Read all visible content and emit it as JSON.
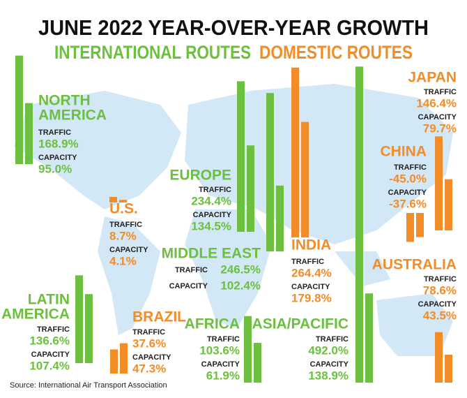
{
  "chart_data": {
    "type": "bar",
    "title": "JUNE 2022 YEAR-OVER-YEAR GROWTH",
    "series": [
      {
        "name": "INTERNATIONAL ROUTES",
        "color": "#6cbf3f"
      },
      {
        "name": "DOMESTIC ROUTES",
        "color": "#f28c28"
      }
    ],
    "metrics": [
      "TRAFFIC",
      "CAPACITY"
    ],
    "regions": [
      {
        "name": [
          "NORTH",
          "AMERICA"
        ],
        "series": 0,
        "values": [
          168.9,
          95.0
        ],
        "value_labels": [
          "168.9%",
          "95.0%"
        ]
      },
      {
        "name": [
          "U.S."
        ],
        "series": 1,
        "values": [
          8.7,
          4.1
        ],
        "value_labels": [
          "8.7%",
          "4.1%"
        ]
      },
      {
        "name": [
          "EUROPE"
        ],
        "series": 0,
        "values": [
          234.4,
          134.5
        ],
        "value_labels": [
          "234.4%",
          "134.5%"
        ]
      },
      {
        "name": [
          "MIDDLE EAST"
        ],
        "series": 0,
        "values": [
          246.5,
          102.4
        ],
        "value_labels": [
          "246.5%",
          "102.4%"
        ]
      },
      {
        "name": [
          "INDIA"
        ],
        "series": 1,
        "values": [
          264.4,
          179.8
        ],
        "value_labels": [
          "264.4%",
          "179.8%"
        ]
      },
      {
        "name": [
          "LATIN",
          "AMERICA"
        ],
        "series": 0,
        "values": [
          136.6,
          107.4
        ],
        "value_labels": [
          "136.6%",
          "107.4%"
        ]
      },
      {
        "name": [
          "BRAZIL"
        ],
        "series": 1,
        "values": [
          37.6,
          47.3
        ],
        "value_labels": [
          "37.6%",
          "47.3%"
        ]
      },
      {
        "name": [
          "AFRICA"
        ],
        "series": 0,
        "values": [
          103.6,
          61.9
        ],
        "value_labels": [
          "103.6%",
          "61.9%"
        ]
      },
      {
        "name": [
          "ASIA/PACIFIC"
        ],
        "series": 0,
        "values": [
          492.0,
          138.9
        ],
        "value_labels": [
          "492.0%",
          "138.9%"
        ]
      },
      {
        "name": [
          "JAPAN"
        ],
        "series": 1,
        "values": [
          146.4,
          79.7
        ],
        "value_labels": [
          "146.4%",
          "79.7%"
        ]
      },
      {
        "name": [
          "CHINA"
        ],
        "series": 1,
        "values": [
          -45.0,
          -37.6
        ],
        "value_labels": [
          "-45.0%",
          "-37.6%"
        ]
      },
      {
        "name": [
          "AUSTRALIA"
        ],
        "series": 1,
        "values": [
          78.6,
          43.5
        ],
        "value_labels": [
          "78.6%",
          "43.5%"
        ]
      }
    ],
    "source": "Source: International Air Transport Association"
  }
}
